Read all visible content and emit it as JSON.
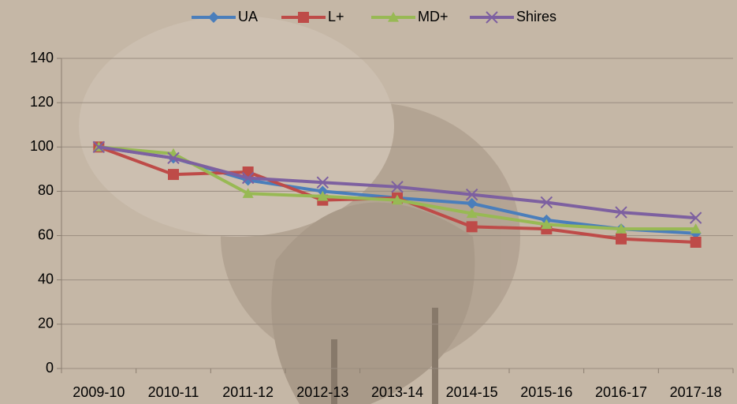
{
  "chart_data": {
    "type": "line",
    "categories": [
      "2009-10",
      "2010-11",
      "2011-12",
      "2012-13",
      "2013-14",
      "2014-15",
      "2015-16",
      "2016-17",
      "2017-18"
    ],
    "series": [
      {
        "name": "UA",
        "color": "#4a7ebb",
        "marker": "diamond",
        "values": [
          100,
          95,
          85,
          80,
          77,
          74.5,
          67,
          63,
          61
        ]
      },
      {
        "name": "L+",
        "color": "#be4b48",
        "marker": "square",
        "values": [
          100,
          87.6,
          88.7,
          76,
          77,
          64,
          63,
          58.5,
          57
        ]
      },
      {
        "name": "MD+",
        "color": "#98b954",
        "marker": "triangle",
        "values": [
          100,
          97,
          79,
          77.7,
          76,
          70,
          65,
          63,
          63
        ]
      },
      {
        "name": "Shires",
        "color": "#7d60a0",
        "marker": "x",
        "values": [
          100,
          95,
          86,
          84,
          82,
          78.5,
          75,
          70.5,
          68
        ]
      }
    ],
    "ylim": [
      0,
      140
    ],
    "yticks": [
      0,
      20,
      40,
      60,
      80,
      100,
      120,
      140
    ],
    "grid": true,
    "legend": "top"
  }
}
